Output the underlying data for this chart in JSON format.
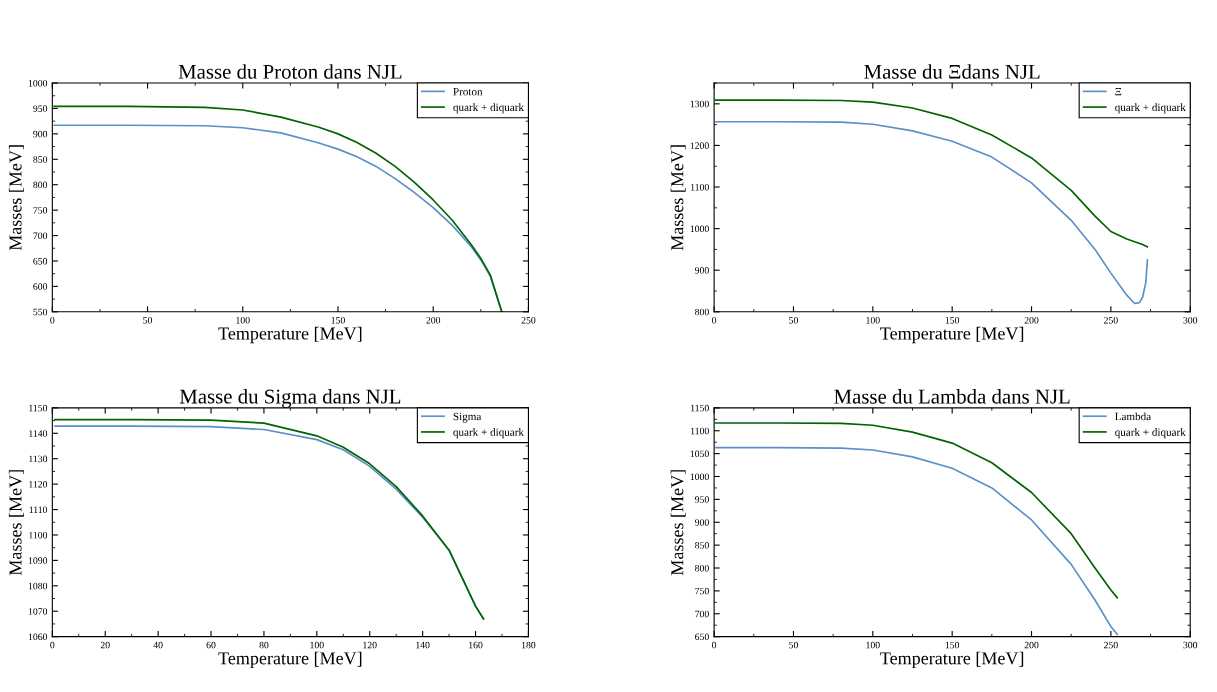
{
  "chart_data": [
    {
      "type": "line",
      "title": "Masse du Proton dans NJL",
      "xlabel": "Temperature [MeV]",
      "ylabel": "Masses [MeV]",
      "xlim": [
        0,
        250
      ],
      "xticks": [
        0,
        50,
        100,
        150,
        200,
        250
      ],
      "ylim": [
        550,
        1000
      ],
      "yticks": [
        550,
        600,
        650,
        700,
        750,
        800,
        850,
        900,
        950,
        1000
      ],
      "legend": "top right",
      "grid": false,
      "marker": "none",
      "line_style": "solid",
      "series": [
        {
          "name": "Proton",
          "color": "#5b8fc7",
          "x": [
            1,
            40,
            80,
            100,
            120,
            140,
            150,
            160,
            170,
            180,
            190,
            200,
            210,
            220,
            225,
            230,
            236
          ],
          "values": [
            917,
            917,
            916,
            912,
            902,
            882,
            870,
            855,
            836,
            812,
            785,
            755,
            720,
            678,
            652,
            620,
            550
          ]
        },
        {
          "name": "quark + diquark",
          "color": "#006400",
          "x": [
            1,
            40,
            80,
            100,
            120,
            140,
            150,
            160,
            170,
            180,
            190,
            200,
            210,
            220,
            225,
            230,
            236
          ],
          "values": [
            954,
            954,
            952,
            947,
            933,
            913,
            900,
            883,
            862,
            836,
            805,
            770,
            730,
            682,
            655,
            622,
            550
          ]
        }
      ]
    },
    {
      "type": "line",
      "title": "Masse du Ξdans NJL",
      "xlabel": "Temperature [MeV]",
      "ylabel": "Masses [MeV]",
      "xlim": [
        0,
        300
      ],
      "xticks": [
        0,
        50,
        100,
        150,
        200,
        250,
        300
      ],
      "ylim": [
        800,
        1350
      ],
      "yticks": [
        800,
        900,
        1000,
        1100,
        1200,
        1300
      ],
      "legend": "top right",
      "grid": false,
      "marker": "none",
      "line_style": "solid",
      "series": [
        {
          "name": "Ξ",
          "color": "#5b8fc7",
          "x": [
            1,
            40,
            80,
            100,
            125,
            150,
            175,
            200,
            225,
            240,
            250,
            260,
            265,
            268,
            270,
            272,
            273
          ],
          "values": [
            1257,
            1257,
            1256,
            1251,
            1235,
            1210,
            1172,
            1110,
            1020,
            950,
            893,
            840,
            820,
            822,
            835,
            870,
            925
          ]
        },
        {
          "name": "quark + diquark",
          "color": "#006400",
          "x": [
            1,
            40,
            80,
            100,
            125,
            150,
            175,
            200,
            225,
            240,
            250,
            260,
            270,
            273
          ],
          "values": [
            1309,
            1309,
            1308,
            1304,
            1290,
            1265,
            1225,
            1170,
            1092,
            1030,
            993,
            975,
            962,
            956
          ]
        }
      ]
    },
    {
      "type": "line",
      "title": "Masse du Sigma dans NJL",
      "xlabel": "Temperature [MeV]",
      "ylabel": "Masses [MeV]",
      "xlim": [
        0,
        180
      ],
      "xticks": [
        0,
        20,
        40,
        60,
        80,
        100,
        120,
        140,
        160,
        180
      ],
      "ylim": [
        1060,
        1150
      ],
      "yticks": [
        1060,
        1070,
        1080,
        1090,
        1100,
        1110,
        1120,
        1130,
        1140,
        1150
      ],
      "legend": "top right",
      "grid": false,
      "marker": "none",
      "line_style": "solid",
      "series": [
        {
          "name": "Sigma",
          "color": "#5b8fc7",
          "x": [
            1,
            30,
            60,
            80,
            100,
            110,
            120,
            130,
            140,
            150,
            160,
            163
          ],
          "values": [
            1142.8,
            1142.8,
            1142.6,
            1141.5,
            1137.5,
            1133.5,
            1127,
            1118,
            1107,
            1094,
            1072,
            1067
          ]
        },
        {
          "name": "quark + diquark",
          "color": "#006400",
          "x": [
            1,
            30,
            60,
            80,
            100,
            110,
            120,
            130,
            140,
            150,
            160,
            163
          ],
          "values": [
            1145.4,
            1145.4,
            1145.2,
            1144,
            1139,
            1134.5,
            1128,
            1119,
            1107.5,
            1094,
            1072,
            1067
          ]
        }
      ]
    },
    {
      "type": "line",
      "title": "Masse du Lambda dans NJL",
      "xlabel": "Temperature [MeV]",
      "ylabel": "Masses [MeV]",
      "xlim": [
        0,
        300
      ],
      "xticks": [
        0,
        50,
        100,
        150,
        200,
        250,
        300
      ],
      "ylim": [
        650,
        1150
      ],
      "yticks": [
        650,
        700,
        750,
        800,
        850,
        900,
        950,
        1000,
        1050,
        1100,
        1150
      ],
      "legend": "top right",
      "grid": false,
      "marker": "none",
      "line_style": "solid",
      "series": [
        {
          "name": "Lambda",
          "color": "#5b8fc7",
          "x": [
            1,
            40,
            80,
            100,
            125,
            150,
            175,
            200,
            225,
            240,
            250,
            254
          ],
          "values": [
            1063,
            1063,
            1062,
            1058,
            1043,
            1018,
            975,
            905,
            808,
            730,
            672,
            655
          ]
        },
        {
          "name": "quark + diquark",
          "color": "#006400",
          "x": [
            1,
            40,
            80,
            100,
            125,
            150,
            175,
            200,
            225,
            240,
            250,
            254
          ],
          "values": [
            1117,
            1117,
            1116,
            1112,
            1097,
            1073,
            1030,
            965,
            875,
            800,
            752,
            735
          ]
        }
      ]
    }
  ]
}
